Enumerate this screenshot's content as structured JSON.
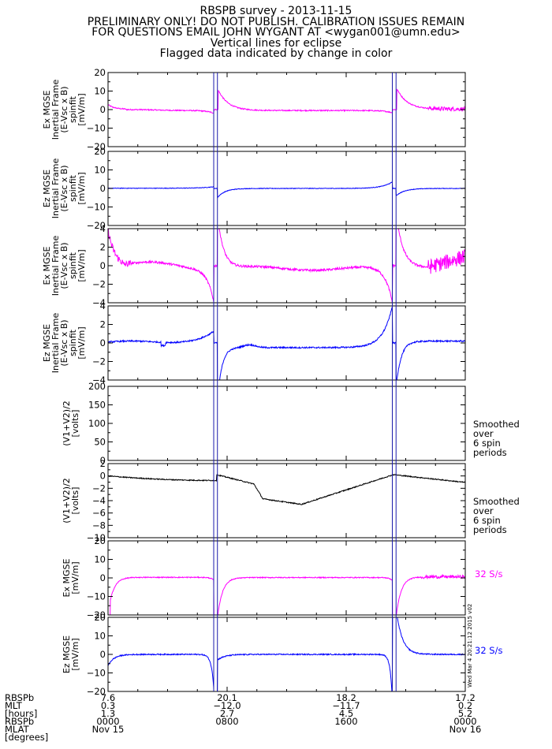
{
  "header": {
    "title": "RBSPB survey - 2013-11-15",
    "lines": [
      "PRELIMINARY ONLY! DO NOT PUBLISH. CALIBRATION ISSUES REMAIN",
      "FOR QUESTIONS EMAIL JOHN WYGANT AT <wygan001@umn.edu>",
      "Vertical lines for eclipse",
      "Flagged data indicated by change in color"
    ]
  },
  "stamp": "Wed Mar 4 20:21:12 2015 v02",
  "colors": {
    "magenta": "#ff00ff",
    "blue": "#0000ff",
    "black": "#000000",
    "eclipse_line": "#1a1aaa"
  },
  "chart_data": {
    "type": "line",
    "x_range_hours": [
      0,
      24
    ],
    "eclipse_lines_hours": [
      7.1,
      7.35,
      19.1,
      19.35
    ],
    "panels": [
      {
        "id": "p1",
        "ylabel": [
          "Ex MGSE",
          "Inertial Frame",
          "(E-Vsc x B)",
          "spinfit",
          "[mV/m]"
        ],
        "ylim": [
          -20,
          20
        ],
        "yticks": [
          "20",
          "10",
          "0",
          "−10",
          "−20"
        ],
        "color": "#ff00ff",
        "shape": "efield"
      },
      {
        "id": "p2",
        "ylabel": [
          "Ez MGSE",
          "Inertial Frame",
          "(E-Vsc x B)",
          "spinfit",
          "[mV/m]"
        ],
        "ylim": [
          -20,
          20
        ],
        "yticks": [
          "20",
          "10",
          "0",
          "−10",
          "−20"
        ],
        "color": "#0000ff",
        "shape": "efield_z"
      },
      {
        "id": "p3",
        "ylabel": [
          "Ex MGSE",
          "Inertial Frame",
          "(E-Vsc x B)",
          "spinfit",
          "[mV/m]"
        ],
        "ylim": [
          -4,
          4
        ],
        "yticks": [
          "4",
          "2",
          "0",
          "−2",
          "−4"
        ],
        "color": "#ff00ff",
        "shape": "efield_zoom"
      },
      {
        "id": "p4",
        "ylabel": [
          "Ez MGSE",
          "Inertial Frame",
          "(E-Vsc x B)",
          "spinfit",
          "[mV/m]"
        ],
        "ylim": [
          -4,
          4
        ],
        "yticks": [
          "4",
          "2",
          "0",
          "−2",
          "−4"
        ],
        "color": "#0000ff",
        "shape": "efield_z_zoom"
      },
      {
        "id": "p5",
        "ylabel": [
          "(V1+V2)/2",
          "[volts]"
        ],
        "ylim": [
          0,
          200
        ],
        "yticks": [
          "200",
          "150",
          "100",
          "50",
          "0"
        ],
        "color": "#000000",
        "shape": "none",
        "side": [
          "Smoothed",
          "over",
          "6 spin",
          "periods"
        ]
      },
      {
        "id": "p6",
        "ylabel": [
          "(V1+V2)/2",
          "[volts]"
        ],
        "ylim": [
          -10,
          2
        ],
        "yticks": [
          "2",
          "0",
          "−2",
          "−4",
          "−6",
          "−8",
          "−10"
        ],
        "color": "#000000",
        "shape": "potential",
        "side": [
          "Smoothed",
          "over",
          "6 spin",
          "periods"
        ]
      },
      {
        "id": "p7",
        "ylabel": [
          "Ex MGSE",
          "[mV/m]"
        ],
        "ylim": [
          -20,
          20
        ],
        "yticks": [
          "20",
          "10",
          "0",
          "−10",
          "−20"
        ],
        "color": "#ff00ff",
        "shape": "fast_x",
        "rate": "32 S/s"
      },
      {
        "id": "p8",
        "ylabel": [
          "Ez MGSE",
          "[mV/m]"
        ],
        "ylim": [
          -20,
          20
        ],
        "yticks": [
          "20",
          "10",
          "0",
          "−10",
          "−20"
        ],
        "color": "#0000ff",
        "shape": "fast_z",
        "rate": "32 S/s"
      }
    ],
    "x_axis": {
      "row_labels": [
        "RBSPb",
        "MLT",
        "[hours]",
        "RBSPb",
        "MLAT",
        "[degrees]"
      ],
      "ticks": [
        {
          "hours": 0,
          "mlt": "7.6",
          "mlat": "0.3",
          "lshell": "1.3",
          "time": "0000",
          "date": "Nov 15"
        },
        {
          "hours": 8,
          "mlt": "20.1",
          "mlat": "−12.0",
          "lshell": "2.7",
          "time": "0800",
          "date": ""
        },
        {
          "hours": 16,
          "mlt": "18.2",
          "mlat": "−11.7",
          "lshell": "4.5",
          "time": "1600",
          "date": ""
        },
        {
          "hours": 24,
          "mlt": "17.2",
          "mlat": "0.2",
          "lshell": "5.2",
          "time": "0000",
          "date": "Nov 16"
        }
      ]
    }
  }
}
